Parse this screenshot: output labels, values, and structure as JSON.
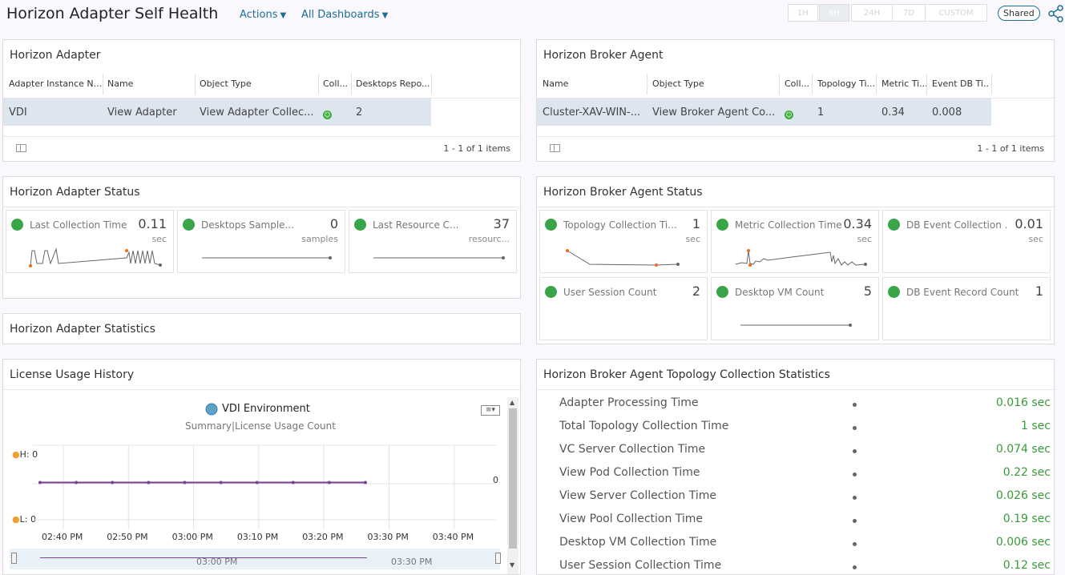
{
  "header": {
    "title": "Horizon Adapter Self Health",
    "actions_label": "Actions",
    "dashboards_label": "All Dashboards",
    "time_buttons": [
      "1H",
      "6H",
      "24H",
      "7D",
      "CUSTOM"
    ],
    "active_time": "6H",
    "shared_label": "Shared",
    "share_icon": "share-icon"
  },
  "adapter_panel": {
    "title": "Horizon Adapter",
    "columns": [
      "Adapter Instance N...",
      "Name",
      "Object Type",
      "Coll...",
      "Desktops Repo..."
    ],
    "row": [
      "VDI",
      "View Adapter",
      "View Adapter Collec...",
      "",
      "2"
    ],
    "count": "1 - 1 of 1 items"
  },
  "broker_panel": {
    "title": "Horizon Broker Agent",
    "columns": [
      "Name",
      "Object Type",
      "Coll...",
      "Topology Ti...",
      "Metric Ti...",
      "Event DB Ti..."
    ],
    "row": [
      "Cluster-XAV-WIN-...",
      "View Broker Agent Co...",
      "",
      "1",
      "0.34",
      "0.008"
    ],
    "count": "1 - 1 of 1 items"
  },
  "adapter_status": {
    "title": "Horizon Adapter Status",
    "cards": [
      {
        "label": "Last Collection Time",
        "value": "0.11",
        "unit": "sec"
      },
      {
        "label": "Desktops Sample...",
        "value": "0",
        "unit": "samples"
      },
      {
        "label": "Last Resource C...",
        "value": "37",
        "unit": "resourc..."
      }
    ]
  },
  "broker_status": {
    "title": "Horizon Broker Agent Status",
    "cards": [
      {
        "label": "Topology Collection Ti...",
        "value": "1",
        "unit": "sec"
      },
      {
        "label": "Metric Collection Time",
        "value": "0.34",
        "unit": "sec"
      },
      {
        "label": "DB Event Collection ...",
        "value": "0.01",
        "unit": "sec"
      },
      {
        "label": "User Session Count",
        "value": "2",
        "unit": ""
      },
      {
        "label": "Desktop VM Count",
        "value": "5",
        "unit": ""
      },
      {
        "label": "DB Event Record Count",
        "value": "1",
        "unit": ""
      }
    ]
  },
  "adapter_statistics": {
    "title": "Horizon Adapter Statistics"
  },
  "license_history": {
    "title": "License Usage History",
    "chart_title": "VDI Environment",
    "chart_subtitle": "Summary|License Usage Count",
    "high_label": "H: 0",
    "low_label": "L: 0",
    "end_value_label": "0",
    "x_ticks": [
      "02:40 PM",
      "02:50 PM",
      "03:00 PM",
      "03:10 PM",
      "03:20 PM",
      "03:30 PM",
      "03:40 PM"
    ],
    "nav_ticks": [
      "03:00 PM",
      "03:30 PM"
    ],
    "line_color": "#7b3f99"
  },
  "chart_data": {
    "type": "line",
    "title": "VDI Environment",
    "subtitle": "Summary|License Usage Count",
    "x": [
      "02:40 PM",
      "02:45 PM",
      "02:50 PM",
      "02:55 PM",
      "03:00 PM",
      "03:05 PM",
      "03:10 PM",
      "03:15 PM",
      "03:20 PM",
      "03:25 PM"
    ],
    "series": [
      {
        "values": [
          0,
          0,
          0,
          0,
          0,
          0,
          0,
          0,
          0,
          0
        ]
      }
    ],
    "grid": true
  },
  "topology_stats": {
    "title": "Horizon Broker Agent Topology Collection Statistics",
    "rows": [
      {
        "label": "Adapter Processing Time",
        "value": "0.016 sec"
      },
      {
        "label": "Total Topology Collection Time",
        "value": "1 sec"
      },
      {
        "label": "VC Server Collection Time",
        "value": "0.074 sec"
      },
      {
        "label": "View Pod Collection Time",
        "value": "0.22 sec"
      },
      {
        "label": "View Server Collection Time",
        "value": "0.026 sec"
      },
      {
        "label": "View Pool Collection Time",
        "value": "0.19 sec"
      },
      {
        "label": "Desktop VM Collection Time",
        "value": "0.006 sec"
      },
      {
        "label": "User Session Collection Time",
        "value": "0.12 sec"
      }
    ]
  },
  "colors": {
    "accent": "#1a6e93",
    "status_green": "#3aa548",
    "selected_row": "#dde6ef",
    "value_green": "#3a9a3a"
  }
}
